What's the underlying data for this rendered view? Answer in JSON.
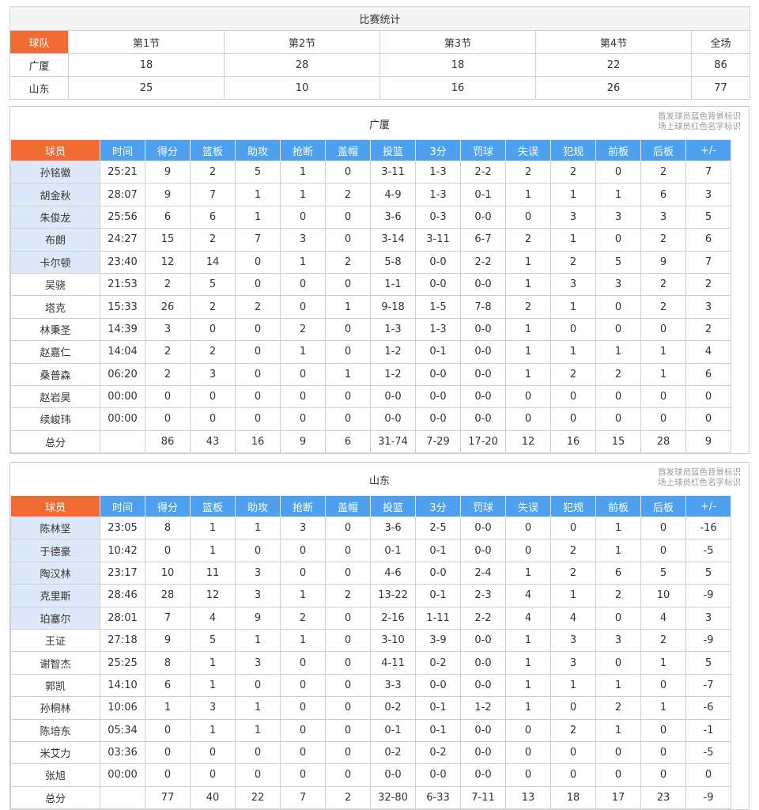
{
  "summary": {
    "title": "比赛统计",
    "headers": [
      "球队",
      "第1节",
      "第2节",
      "第3节",
      "第4节",
      "全场"
    ],
    "rows": [
      {
        "team": "广厦",
        "q1": "18",
        "q2": "28",
        "q3": "18",
        "q4": "22",
        "total": "86"
      },
      {
        "team": "山东",
        "q1": "25",
        "q2": "10",
        "q3": "16",
        "q4": "26",
        "total": "77"
      }
    ]
  },
  "columns": [
    "球员",
    "时间",
    "得分",
    "篮板",
    "助攻",
    "抢断",
    "盖帽",
    "投篮",
    "3分",
    "罚球",
    "失误",
    "犯规",
    "前板",
    "后板",
    "+/-"
  ],
  "teams": [
    {
      "name": "广厦",
      "note_line1": "首发球员蓝色背景标识",
      "note_line2": "场上球员红色名字标识",
      "players": [
        {
          "name": "孙铭徽",
          "starter": true,
          "stats": [
            "25:21",
            "9",
            "2",
            "5",
            "1",
            "0",
            "3-11",
            "1-3",
            "2-2",
            "2",
            "2",
            "0",
            "2",
            "7"
          ]
        },
        {
          "name": "胡金秋",
          "starter": true,
          "stats": [
            "28:07",
            "9",
            "7",
            "1",
            "1",
            "2",
            "4-9",
            "1-3",
            "0-1",
            "1",
            "1",
            "1",
            "6",
            "3"
          ]
        },
        {
          "name": "朱俊龙",
          "starter": true,
          "stats": [
            "25:56",
            "6",
            "6",
            "1",
            "0",
            "0",
            "3-6",
            "0-3",
            "0-0",
            "0",
            "3",
            "3",
            "3",
            "5"
          ]
        },
        {
          "name": "布朗",
          "starter": true,
          "stats": [
            "24:27",
            "15",
            "2",
            "7",
            "3",
            "0",
            "3-14",
            "3-11",
            "6-7",
            "2",
            "1",
            "0",
            "2",
            "6"
          ]
        },
        {
          "name": "卡尔顿",
          "starter": true,
          "stats": [
            "23:40",
            "12",
            "14",
            "0",
            "1",
            "2",
            "5-8",
            "0-0",
            "2-2",
            "1",
            "2",
            "5",
            "9",
            "7"
          ]
        },
        {
          "name": "吴骁",
          "starter": false,
          "stats": [
            "21:53",
            "2",
            "5",
            "0",
            "0",
            "0",
            "1-1",
            "0-0",
            "0-0",
            "1",
            "3",
            "3",
            "2",
            "2"
          ]
        },
        {
          "name": "塔克",
          "starter": false,
          "stats": [
            "15:33",
            "26",
            "2",
            "2",
            "0",
            "1",
            "9-18",
            "1-5",
            "7-8",
            "2",
            "1",
            "0",
            "2",
            "3"
          ]
        },
        {
          "name": "林秉圣",
          "starter": false,
          "stats": [
            "14:39",
            "3",
            "0",
            "0",
            "2",
            "0",
            "1-3",
            "1-3",
            "0-0",
            "1",
            "0",
            "0",
            "0",
            "2"
          ]
        },
        {
          "name": "赵嘉仁",
          "starter": false,
          "stats": [
            "14:04",
            "2",
            "2",
            "0",
            "1",
            "0",
            "1-2",
            "0-1",
            "0-0",
            "1",
            "1",
            "1",
            "1",
            "4"
          ]
        },
        {
          "name": "桑普森",
          "starter": false,
          "stats": [
            "06:20",
            "2",
            "3",
            "0",
            "0",
            "1",
            "1-2",
            "0-0",
            "0-0",
            "1",
            "2",
            "2",
            "1",
            "6"
          ]
        },
        {
          "name": "赵岩昊",
          "starter": false,
          "stats": [
            "00:00",
            "0",
            "0",
            "0",
            "0",
            "0",
            "0-0",
            "0-0",
            "0-0",
            "0",
            "0",
            "0",
            "0",
            "0"
          ]
        },
        {
          "name": "续峻玮",
          "starter": false,
          "stats": [
            "00:00",
            "0",
            "0",
            "0",
            "0",
            "0",
            "0-0",
            "0-0",
            "0-0",
            "0",
            "0",
            "0",
            "0",
            "0"
          ]
        }
      ],
      "total": {
        "label": "总分",
        "stats": [
          "",
          "86",
          "43",
          "16",
          "9",
          "6",
          "31-74",
          "7-29",
          "17-20",
          "12",
          "16",
          "15",
          "28",
          "9"
        ]
      }
    },
    {
      "name": "山东",
      "note_line1": "首发球员蓝色背景标识",
      "note_line2": "场上球员红色名字标识",
      "players": [
        {
          "name": "陈林坚",
          "starter": true,
          "stats": [
            "23:05",
            "8",
            "1",
            "1",
            "3",
            "0",
            "3-6",
            "2-5",
            "0-0",
            "0",
            "0",
            "1",
            "0",
            "-16"
          ]
        },
        {
          "name": "于德豪",
          "starter": true,
          "stats": [
            "10:42",
            "0",
            "1",
            "0",
            "0",
            "0",
            "0-1",
            "0-1",
            "0-0",
            "0",
            "2",
            "1",
            "0",
            "-5"
          ]
        },
        {
          "name": "陶汉林",
          "starter": true,
          "stats": [
            "23:17",
            "10",
            "11",
            "3",
            "0",
            "0",
            "4-6",
            "0-0",
            "2-4",
            "1",
            "2",
            "6",
            "5",
            "5"
          ]
        },
        {
          "name": "克里斯",
          "starter": true,
          "stats": [
            "28:46",
            "28",
            "12",
            "3",
            "1",
            "2",
            "13-22",
            "0-1",
            "2-3",
            "4",
            "1",
            "2",
            "10",
            "-9"
          ]
        },
        {
          "name": "珀塞尔",
          "starter": true,
          "stats": [
            "28:01",
            "7",
            "4",
            "9",
            "2",
            "0",
            "2-16",
            "1-11",
            "2-2",
            "4",
            "4",
            "0",
            "4",
            "3"
          ]
        },
        {
          "name": "王证",
          "starter": false,
          "stats": [
            "27:18",
            "9",
            "5",
            "1",
            "1",
            "0",
            "3-10",
            "3-9",
            "0-0",
            "1",
            "3",
            "3",
            "2",
            "-9"
          ]
        },
        {
          "name": "谢智杰",
          "starter": false,
          "stats": [
            "25:25",
            "8",
            "1",
            "3",
            "0",
            "0",
            "4-11",
            "0-2",
            "0-0",
            "1",
            "3",
            "0",
            "1",
            "5"
          ]
        },
        {
          "name": "郭凯",
          "starter": false,
          "stats": [
            "14:10",
            "6",
            "1",
            "0",
            "0",
            "0",
            "3-3",
            "0-0",
            "0-0",
            "1",
            "1",
            "1",
            "0",
            "-7"
          ]
        },
        {
          "name": "孙桐林",
          "starter": false,
          "stats": [
            "10:06",
            "1",
            "3",
            "1",
            "0",
            "0",
            "0-2",
            "0-1",
            "1-2",
            "1",
            "0",
            "2",
            "1",
            "-6"
          ]
        },
        {
          "name": "陈培东",
          "starter": false,
          "stats": [
            "05:34",
            "0",
            "1",
            "1",
            "0",
            "0",
            "0-1",
            "0-1",
            "0-0",
            "0",
            "2",
            "1",
            "0",
            "-1"
          ]
        },
        {
          "name": "米艾力",
          "starter": false,
          "stats": [
            "03:36",
            "0",
            "0",
            "0",
            "0",
            "0",
            "0-2",
            "0-2",
            "0-0",
            "0",
            "0",
            "0",
            "0",
            "-5"
          ]
        },
        {
          "name": "张旭",
          "starter": false,
          "stats": [
            "00:00",
            "0",
            "0",
            "0",
            "0",
            "0",
            "0-0",
            "0-0",
            "0-0",
            "0",
            "0",
            "0",
            "0",
            "0"
          ]
        }
      ],
      "total": {
        "label": "总分",
        "stats": [
          "",
          "77",
          "40",
          "22",
          "7",
          "2",
          "32-80",
          "6-33",
          "7-11",
          "13",
          "18",
          "17",
          "23",
          "-9"
        ]
      }
    }
  ],
  "colors": {
    "header_orange": "#f26b33",
    "header_blue": "#4da1ef",
    "starter_bg": "#dde9f8"
  }
}
